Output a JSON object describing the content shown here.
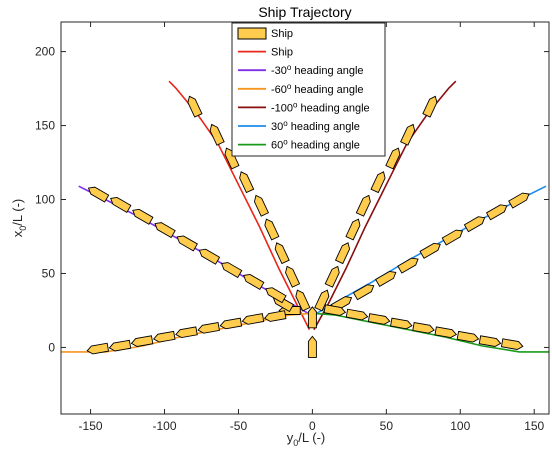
{
  "chart_data": {
    "type": "line",
    "title": "Ship Trajectory",
    "xlabel_main": "y",
    "xlabel_sub": "0",
    "xlabel_tail": "/L (-)",
    "ylabel_main": "x",
    "ylabel_sub": "0",
    "ylabel_tail": "/L (-)",
    "xlim": [
      -170,
      160
    ],
    "ylim": [
      -45,
      220
    ],
    "xticks": [
      -150,
      -100,
      -50,
      0,
      50,
      100,
      150
    ],
    "yticks": [
      0,
      50,
      100,
      150,
      200
    ],
    "grid": false,
    "legend_position": "top-center",
    "colors": {
      "axis": "#262626",
      "ship_fill": "#FFCC4D",
      "ship_edge": "#000000",
      "ship_path": "#E8261A",
      "m30": "#7E2FE8",
      "m60": "#F7941D",
      "m100": "#8B0E0E",
      "p30": "#1F8BEA",
      "p60": "#1A9A1A"
    },
    "legend": [
      {
        "label": "Ship",
        "sup": "",
        "tail": "",
        "kind": "patch",
        "color_key": "ship_fill"
      },
      {
        "label": "Ship",
        "sup": "",
        "tail": "",
        "kind": "line",
        "color_key": "ship_path"
      },
      {
        "label": "-30",
        "sup": "o",
        "tail": " heading angle",
        "kind": "line",
        "color_key": "m30"
      },
      {
        "label": "-60",
        "sup": "o",
        "tail": " heading angle",
        "kind": "line",
        "color_key": "m60"
      },
      {
        "label": "-100",
        "sup": "o",
        "tail": " heading angle",
        "kind": "line",
        "color_key": "m100"
      },
      {
        "label": "30",
        "sup": "o",
        "tail": " heading angle",
        "kind": "line",
        "color_key": "p30"
      },
      {
        "label": "60",
        "sup": "o",
        "tail": " heading angle",
        "kind": "line",
        "color_key": "p60"
      }
    ],
    "series": [
      {
        "key": "ship",
        "color_key": "ship_path",
        "x": [
          -2,
          -10,
          -23,
          -36,
          -50,
          -64,
          -78,
          -92,
          -97
        ],
        "y": [
          12,
          28,
          54,
          82,
          110,
          138,
          158,
          175,
          180
        ]
      },
      {
        "key": "m30",
        "color_key": "m30",
        "x": [
          -1,
          -15,
          -40,
          -65,
          -90,
          -115,
          -140,
          -158
        ],
        "y": [
          22,
          30,
          44,
          59,
          73,
          87,
          100,
          109
        ]
      },
      {
        "key": "m60",
        "color_key": "m60",
        "x": [
          -1,
          -15,
          -40,
          -65,
          -90,
          -115,
          -140,
          -170
        ],
        "y": [
          23,
          22,
          17,
          12,
          7,
          1,
          -3,
          -3
        ]
      },
      {
        "key": "m100",
        "color_key": "m100",
        "x": [
          1,
          10,
          23,
          36,
          50,
          64,
          78,
          92,
          97
        ],
        "y": [
          12,
          28,
          54,
          82,
          110,
          138,
          158,
          175,
          180
        ]
      },
      {
        "key": "p30",
        "color_key": "p30",
        "x": [
          1,
          15,
          40,
          65,
          90,
          115,
          140,
          158
        ],
        "y": [
          22,
          30,
          44,
          59,
          73,
          87,
          100,
          109
        ]
      },
      {
        "key": "p60",
        "color_key": "p60",
        "x": [
          1,
          15,
          40,
          65,
          90,
          115,
          140,
          165
        ],
        "y": [
          23,
          22,
          17,
          12,
          7,
          1,
          -3,
          -3
        ]
      }
    ],
    "ship_markers": [
      {
        "x": 0,
        "y": 0,
        "angle": 0
      },
      {
        "x": 0,
        "y": 20,
        "angle": 0
      },
      {
        "x": -15,
        "y": 25,
        "angle": -90
      },
      {
        "x": -20,
        "y": 30,
        "angle": -60
      },
      {
        "x": -25,
        "y": 36,
        "angle": -60
      },
      {
        "x": -40,
        "y": 45,
        "angle": -60
      },
      {
        "x": -55,
        "y": 53,
        "angle": -60
      },
      {
        "x": -70,
        "y": 62,
        "angle": -60
      },
      {
        "x": -85,
        "y": 71,
        "angle": -60
      },
      {
        "x": -100,
        "y": 80,
        "angle": -60
      },
      {
        "x": -115,
        "y": 89,
        "angle": -60
      },
      {
        "x": -130,
        "y": 97,
        "angle": -60
      },
      {
        "x": -145,
        "y": 104,
        "angle": -60
      },
      {
        "x": -25,
        "y": 21,
        "angle": -100
      },
      {
        "x": -40,
        "y": 19,
        "angle": -100
      },
      {
        "x": -55,
        "y": 16,
        "angle": -100
      },
      {
        "x": -70,
        "y": 13,
        "angle": -100
      },
      {
        "x": -85,
        "y": 10,
        "angle": -100
      },
      {
        "x": -100,
        "y": 7,
        "angle": -100
      },
      {
        "x": -115,
        "y": 4,
        "angle": -100
      },
      {
        "x": -130,
        "y": 1,
        "angle": -100
      },
      {
        "x": -145,
        "y": -1,
        "angle": -100
      },
      {
        "x": -7,
        "y": 32,
        "angle": -25
      },
      {
        "x": -14,
        "y": 48,
        "angle": -25
      },
      {
        "x": -21,
        "y": 64,
        "angle": -25
      },
      {
        "x": -28,
        "y": 80,
        "angle": -25
      },
      {
        "x": -35,
        "y": 96,
        "angle": -25
      },
      {
        "x": -45,
        "y": 112,
        "angle": -25
      },
      {
        "x": -55,
        "y": 128,
        "angle": -25
      },
      {
        "x": -65,
        "y": 144,
        "angle": -25
      },
      {
        "x": -80,
        "y": 163,
        "angle": -25
      },
      {
        "x": 7,
        "y": 32,
        "angle": 25
      },
      {
        "x": 14,
        "y": 48,
        "angle": 25
      },
      {
        "x": 21,
        "y": 64,
        "angle": 25
      },
      {
        "x": 28,
        "y": 80,
        "angle": 25
      },
      {
        "x": 35,
        "y": 96,
        "angle": 25
      },
      {
        "x": 45,
        "y": 112,
        "angle": 25
      },
      {
        "x": 55,
        "y": 128,
        "angle": 25
      },
      {
        "x": 65,
        "y": 144,
        "angle": 25
      },
      {
        "x": 80,
        "y": 163,
        "angle": 25
      },
      {
        "x": 20,
        "y": 30,
        "angle": 60
      },
      {
        "x": 35,
        "y": 38,
        "angle": 60
      },
      {
        "x": 50,
        "y": 47,
        "angle": 60
      },
      {
        "x": 65,
        "y": 56,
        "angle": 60
      },
      {
        "x": 80,
        "y": 66,
        "angle": 60
      },
      {
        "x": 95,
        "y": 75,
        "angle": 60
      },
      {
        "x": 110,
        "y": 84,
        "angle": 60
      },
      {
        "x": 125,
        "y": 92,
        "angle": 60
      },
      {
        "x": 140,
        "y": 100,
        "angle": 60
      },
      {
        "x": 15,
        "y": 25,
        "angle": 100
      },
      {
        "x": 30,
        "y": 22,
        "angle": 100
      },
      {
        "x": 45,
        "y": 19,
        "angle": 100
      },
      {
        "x": 60,
        "y": 16,
        "angle": 100
      },
      {
        "x": 75,
        "y": 13,
        "angle": 100
      },
      {
        "x": 90,
        "y": 10,
        "angle": 100
      },
      {
        "x": 105,
        "y": 7,
        "angle": 100
      },
      {
        "x": 120,
        "y": 4,
        "angle": 100
      },
      {
        "x": 135,
        "y": 2,
        "angle": 100
      }
    ]
  }
}
